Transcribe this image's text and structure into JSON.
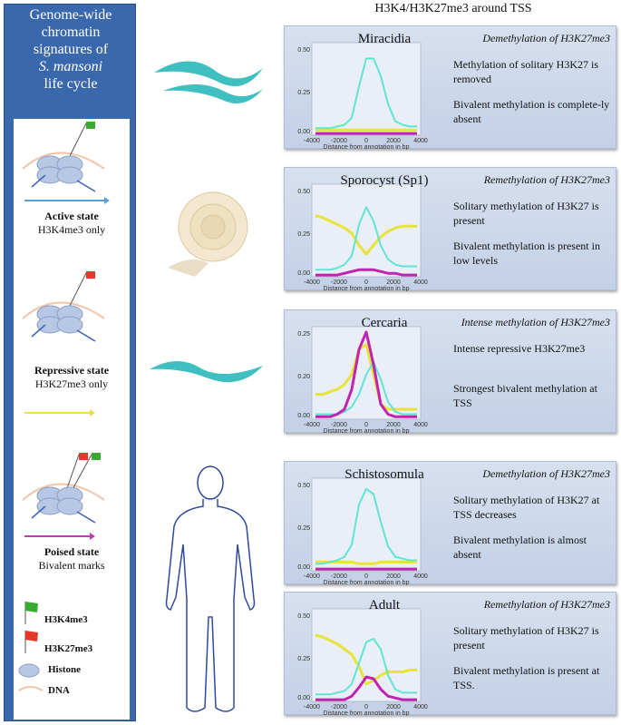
{
  "left_title": [
    "Genome-wide",
    "chromatin",
    "signatures of",
    "S. mansoni",
    "life cycle"
  ],
  "main_title": "H3K4/H3K27me3 around TSS",
  "states": [
    {
      "name": "Active state",
      "detail": "H3K4me3 only",
      "arrow_color": "#5aa0d8"
    },
    {
      "name": "Repressive state",
      "detail": "H3K27me3 only",
      "arrow_color": "#e8e04a"
    },
    {
      "name": "Poised state",
      "detail": "Bivalent marks",
      "arrow_color": "#c23ab5"
    }
  ],
  "key": {
    "h3k4": "H3K4me3",
    "h3k27": "H3K27me3",
    "histone": "Histone",
    "dna": "DNA"
  },
  "colors": {
    "h3k4": "#5ee6d3",
    "h3k27": "#e8e33a",
    "bivalent": "#c023b0",
    "panel": "#3a68ad"
  },
  "axis": {
    "xlabel": "Distance from annotation in bp",
    "xticks": [
      "-4000",
      "-2000",
      "0",
      "2000",
      "4000"
    ]
  },
  "stages": [
    {
      "name": "Miracidia",
      "mode": "Demethylation of  H3K27me3",
      "desc": [
        "Methylation of solitary H3K27 is removed",
        "Bivalent methylation is complete-ly absent"
      ],
      "yticks": [
        "0.50",
        "0.25",
        "0.00"
      ],
      "ymax": 0.5,
      "series": {
        "h3k4": [
          0.04,
          0.04,
          0.04,
          0.05,
          0.06,
          0.1,
          0.28,
          0.44,
          0.44,
          0.34,
          0.18,
          0.08,
          0.06,
          0.05,
          0.05
        ],
        "h3k27": [
          0.03,
          0.03,
          0.03,
          0.03,
          0.03,
          0.03,
          0.03,
          0.03,
          0.03,
          0.03,
          0.03,
          0.03,
          0.03,
          0.03,
          0.03
        ],
        "bivalent": [
          0.01,
          0.01,
          0.01,
          0.01,
          0.01,
          0.01,
          0.01,
          0.01,
          0.01,
          0.01,
          0.01,
          0.01,
          0.01,
          0.01,
          0.01
        ]
      }
    },
    {
      "name": "Sporocyst (Sp1)",
      "mode": "Remethylation of  H3K27me3",
      "desc": [
        "Solitary methylation of H3K27 is present",
        "Bivalent methylation is present in low levels"
      ],
      "yticks": [
        "0.50",
        "0.25",
        "0.00"
      ],
      "ymax": 0.5,
      "series": {
        "h3k4": [
          0.04,
          0.04,
          0.04,
          0.05,
          0.07,
          0.12,
          0.3,
          0.4,
          0.32,
          0.18,
          0.1,
          0.07,
          0.06,
          0.06,
          0.06
        ],
        "h3k27": [
          0.35,
          0.34,
          0.32,
          0.3,
          0.28,
          0.25,
          0.18,
          0.13,
          0.18,
          0.23,
          0.26,
          0.28,
          0.29,
          0.29,
          0.29
        ],
        "bivalent": [
          0.01,
          0.01,
          0.01,
          0.01,
          0.02,
          0.03,
          0.04,
          0.04,
          0.04,
          0.03,
          0.02,
          0.02,
          0.01,
          0.01,
          0.01
        ]
      }
    },
    {
      "name": "Cercaria",
      "mode": "Intense methylation of  H3K27me3",
      "desc": [
        "Intense repressive H3K27me3",
        "Strongest bivalent methylation at TSS"
      ],
      "yticks": [
        "0.25",
        "0.20",
        "0.00"
      ],
      "ymax": 0.35,
      "series": {
        "h3k4": [
          0.02,
          0.02,
          0.02,
          0.02,
          0.03,
          0.05,
          0.1,
          0.18,
          0.23,
          0.16,
          0.07,
          0.03,
          0.02,
          0.02,
          0.02
        ],
        "h3k27": [
          0.1,
          0.1,
          0.11,
          0.12,
          0.14,
          0.18,
          0.28,
          0.3,
          0.18,
          0.06,
          0.04,
          0.04,
          0.04,
          0.04,
          0.04
        ],
        "bivalent": [
          0.01,
          0.01,
          0.01,
          0.02,
          0.04,
          0.12,
          0.28,
          0.35,
          0.22,
          0.06,
          0.02,
          0.01,
          0.01,
          0.01,
          0.01
        ]
      }
    },
    {
      "name": "Schistosomula",
      "mode": "Demethylation of  H3K27me3",
      "desc": [
        "Solitary methylation of H3K27 at TSS decreases",
        "Bivalent methylation is almost absent"
      ],
      "yticks": [
        "0.50",
        "0.25",
        "0.00"
      ],
      "ymax": 0.5,
      "series": {
        "h3k4": [
          0.04,
          0.04,
          0.05,
          0.06,
          0.08,
          0.15,
          0.38,
          0.47,
          0.44,
          0.28,
          0.14,
          0.08,
          0.07,
          0.06,
          0.06
        ],
        "h3k27": [
          0.05,
          0.05,
          0.05,
          0.05,
          0.05,
          0.05,
          0.04,
          0.04,
          0.04,
          0.05,
          0.05,
          0.05,
          0.05,
          0.05,
          0.05
        ],
        "bivalent": [
          0.01,
          0.01,
          0.01,
          0.01,
          0.01,
          0.01,
          0.01,
          0.01,
          0.01,
          0.01,
          0.01,
          0.01,
          0.01,
          0.01,
          0.01
        ]
      }
    },
    {
      "name": "Adult",
      "mode": "Remethylation of  H3K27me3",
      "desc": [
        "Solitary methylation of H3K27 is present",
        "Bivalent methylation is present at TSS."
      ],
      "yticks": [
        "0.50",
        "0.25",
        "0.00"
      ],
      "ymax": 0.5,
      "series": {
        "h3k4": [
          0.04,
          0.04,
          0.04,
          0.05,
          0.06,
          0.1,
          0.22,
          0.34,
          0.36,
          0.3,
          0.15,
          0.07,
          0.05,
          0.05,
          0.05
        ],
        "h3k27": [
          0.38,
          0.37,
          0.35,
          0.33,
          0.3,
          0.27,
          0.2,
          0.1,
          0.12,
          0.15,
          0.17,
          0.17,
          0.17,
          0.18,
          0.18
        ],
        "bivalent": [
          0.01,
          0.01,
          0.01,
          0.01,
          0.01,
          0.03,
          0.08,
          0.14,
          0.13,
          0.07,
          0.03,
          0.02,
          0.01,
          0.01,
          0.01
        ]
      }
    }
  ]
}
